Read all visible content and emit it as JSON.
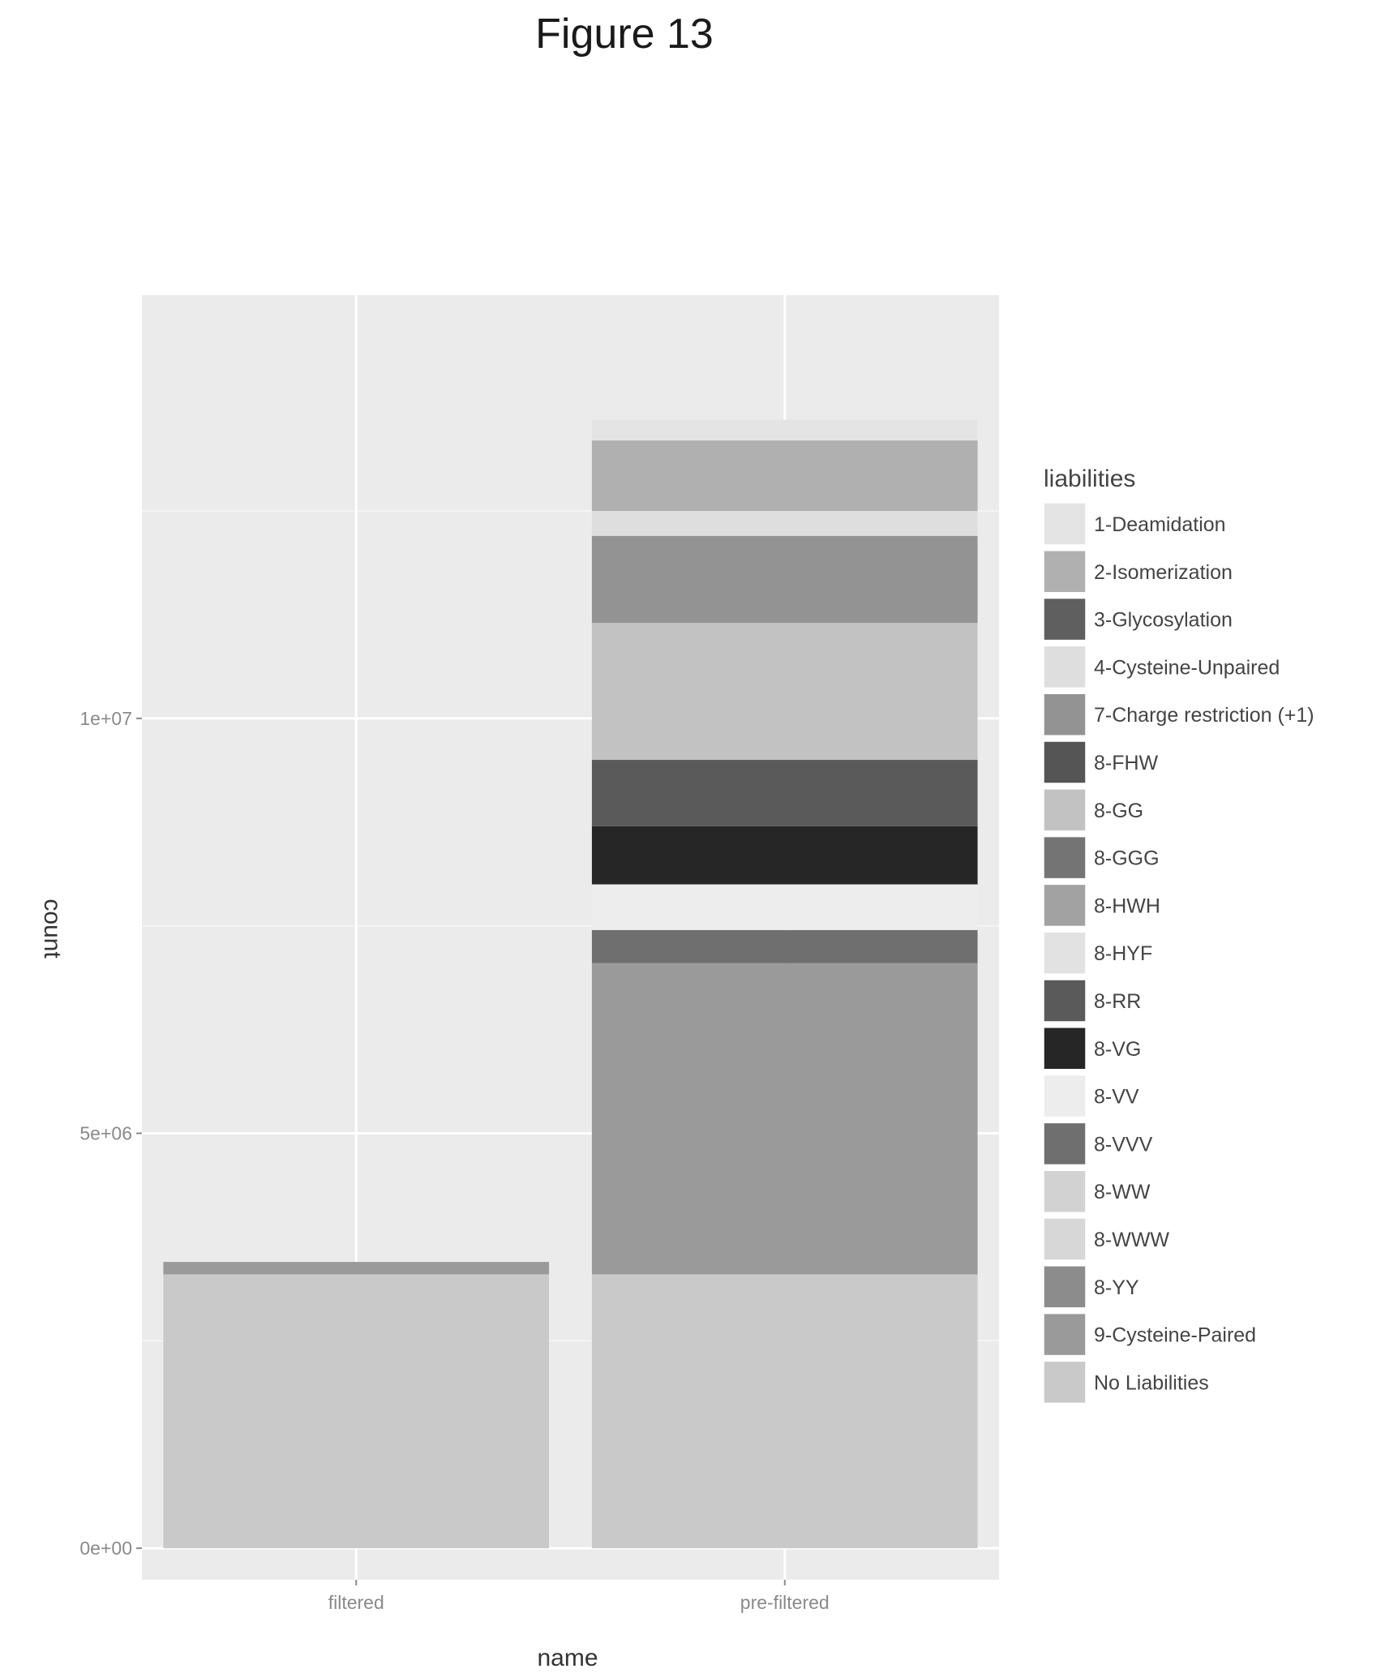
{
  "figure_title": "Figure 13",
  "chart_data": {
    "type": "bar",
    "stacked": true,
    "title": "",
    "xlabel": "name",
    "ylabel": "count",
    "categories": [
      "filtered",
      "pre-filtered"
    ],
    "ylim": [
      -380000,
      15100000
    ],
    "yticks": [
      {
        "value": 0,
        "label": "0e+00"
      },
      {
        "value": 5000000,
        "label": "5e+06"
      },
      {
        "value": 10000000,
        "label": "1e+07"
      }
    ],
    "grid": true,
    "legend": {
      "title": "liabilities",
      "position": "right"
    },
    "series": [
      {
        "name": "No Liabilities",
        "color": "#c9c9c9",
        "values": [
          3300000,
          3300000
        ]
      },
      {
        "name": "9-Cysteine-Paired",
        "color": "#9a9a9a",
        "values": [
          150000,
          3750000
        ]
      },
      {
        "name": "8-YY",
        "color": "#8c8c8c",
        "values": [
          0,
          0
        ]
      },
      {
        "name": "8-WWW",
        "color": "#d7d7d7",
        "values": [
          0,
          0
        ]
      },
      {
        "name": "8-WW",
        "color": "#d2d2d2",
        "values": [
          0,
          0
        ]
      },
      {
        "name": "8-VVV",
        "color": "#6f6f6f",
        "values": [
          0,
          400000
        ]
      },
      {
        "name": "8-VV",
        "color": "#ededed",
        "values": [
          0,
          550000
        ]
      },
      {
        "name": "8-VG",
        "color": "#262626",
        "values": [
          0,
          700000
        ]
      },
      {
        "name": "8-RR",
        "color": "#5a5a5a",
        "values": [
          0,
          800000
        ]
      },
      {
        "name": "8-HYF",
        "color": "#e2e2e2",
        "values": [
          0,
          0
        ]
      },
      {
        "name": "8-HWH",
        "color": "#a2a2a2",
        "values": [
          0,
          0
        ]
      },
      {
        "name": "8-GGG",
        "color": "#747474",
        "values": [
          0,
          0
        ]
      },
      {
        "name": "8-GG",
        "color": "#c2c2c2",
        "values": [
          0,
          1650000
        ]
      },
      {
        "name": "7-Charge restriction (+1)",
        "color": "#939393",
        "values": [
          0,
          1050000
        ]
      },
      {
        "name": "4-Cysteine-Unpaired",
        "color": "#dedede",
        "values": [
          0,
          300000
        ]
      },
      {
        "name": "3-Glycosylation",
        "color": "#5f5f5f",
        "values": [
          0,
          0
        ]
      },
      {
        "name": "2-Isomerization",
        "color": "#b0b0b0",
        "values": [
          0,
          850000
        ]
      },
      {
        "name": "1-Deamidation",
        "color": "#e4e4e4",
        "values": [
          0,
          250000
        ]
      }
    ],
    "legend_order": [
      "1-Deamidation",
      "2-Isomerization",
      "3-Glycosylation",
      "4-Cysteine-Unpaired",
      "7-Charge restriction (+1)",
      "8-FHW",
      "8-GG",
      "8-GGG",
      "8-HWH",
      "8-HYF",
      "8-RR",
      "8-VG",
      "8-VV",
      "8-VVV",
      "8-WW",
      "8-WWW",
      "8-YY",
      "9-Cysteine-Paired",
      "No Liabilities"
    ],
    "legend_colors": {
      "8-FHW": "#555555"
    }
  }
}
